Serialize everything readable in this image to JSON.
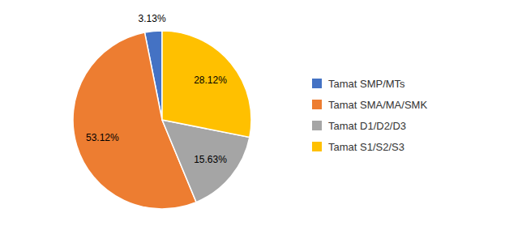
{
  "chart_data": {
    "type": "pie",
    "categories": [
      "Tamat SMP/MTs",
      "Tamat SMA/MA/SMK",
      "Tamat D1/D2/D3",
      "Tamat S1/S2/S3"
    ],
    "values": [
      3.13,
      53.12,
      15.63,
      28.12
    ],
    "value_labels": [
      "3.13%",
      "53.12%",
      "15.63%",
      "28.12%"
    ],
    "colors": [
      "#4472C4",
      "#ED7D31",
      "#A5A5A5",
      "#FFC000"
    ],
    "legend": "right",
    "data_labels": true
  }
}
